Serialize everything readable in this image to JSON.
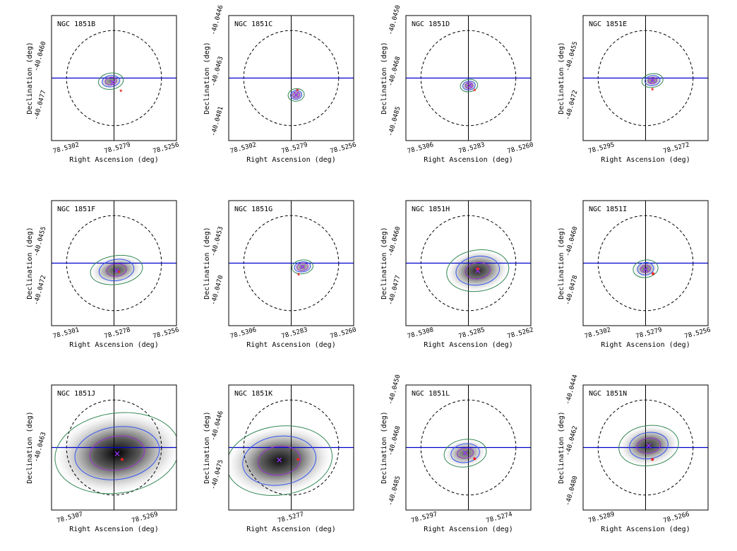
{
  "figure": {
    "xlabel": "Right Ascension (deg)",
    "ylabel": "Declination (deg)"
  },
  "colors": {
    "dashed_circle": "#000000",
    "crosshair_vertical": "#000000",
    "crosshair_horizontal": "#0000cc",
    "contour_inner": "#9933cc",
    "contour_mid": "#3355ee",
    "contour_outer": "#338855",
    "peak_marker": "#9933ff",
    "offset_marker": "#ee2222"
  },
  "chart_data": [
    {
      "type": "scatter",
      "title": "NGC 1851B",
      "xticks": [
        "78.5302",
        "78.5279",
        "78.5256"
      ],
      "yticks": [
        "-40.0460",
        "-40.0477"
      ],
      "core": [
        -0.05,
        0.05
      ],
      "radii": [
        [
          0.09,
          0.06
        ],
        [
          0.14,
          0.09
        ],
        [
          0.2,
          0.13
        ]
      ],
      "intensity": 0.55,
      "peak": [
        -0.02,
        0.07
      ],
      "marker": [
        0.11,
        0.19
      ],
      "marker_shape": "star"
    },
    {
      "type": "scatter",
      "title": "NGC 1851C",
      "xticks": [
        "78.5302",
        "78.5279",
        "78.5256"
      ],
      "yticks": [
        "-40.0446",
        "-40.0463",
        "-40.0481"
      ],
      "core": [
        0.08,
        0.27
      ],
      "radii": [
        [
          0.06,
          0.05
        ],
        [
          0.09,
          0.07
        ],
        [
          0.13,
          0.1
        ]
      ],
      "intensity": 0.5,
      "peak": [
        0.08,
        0.27
      ],
      "marker": [
        0.1,
        0.18
      ],
      "marker_shape": "star"
    },
    {
      "type": "scatter",
      "title": "NGC 1851D",
      "xticks": [
        "78.5306",
        "78.5283",
        "78.5260"
      ],
      "yticks": [
        "-40.0450",
        "-40.0468",
        "-40.0485"
      ],
      "core": [
        0.01,
        0.12
      ],
      "radii": [
        [
          0.06,
          0.05
        ],
        [
          0.1,
          0.07
        ],
        [
          0.14,
          0.1
        ]
      ],
      "intensity": 0.55,
      "peak": [
        0.02,
        0.12
      ],
      "marker": [
        0.1,
        0.18
      ],
      "marker_shape": "star"
    },
    {
      "type": "scatter",
      "title": "NGC 1851E",
      "xticks": [
        "78.5295",
        "78.5272"
      ],
      "yticks": [
        "-40.0455",
        "-40.0472"
      ],
      "core": [
        0.11,
        0.04
      ],
      "radii": [
        [
          0.07,
          0.05
        ],
        [
          0.12,
          0.08
        ],
        [
          0.17,
          0.11
        ]
      ],
      "intensity": 0.55,
      "peak": [
        0.11,
        0.04
      ],
      "marker": [
        0.11,
        0.17
      ],
      "marker_shape": "star"
    },
    {
      "type": "scatter",
      "title": "NGC 1851F",
      "xticks": [
        "78.5301",
        "78.5278",
        "78.5256"
      ],
      "yticks": [
        "-40.0455",
        "-40.0472"
      ],
      "core": [
        0.04,
        0.11
      ],
      "radii": [
        [
          0.16,
          0.1
        ],
        [
          0.28,
          0.17
        ],
        [
          0.42,
          0.23
        ]
      ],
      "intensity": 0.7,
      "peak": [
        0.04,
        0.12
      ],
      "marker": [
        0.08,
        0.13
      ],
      "marker_shape": "star"
    },
    {
      "type": "scatter",
      "title": "NGC 1851G",
      "xticks": [
        "78.5306",
        "78.5283",
        "78.5260"
      ],
      "yticks": [
        "-40.0453",
        "-40.0470"
      ],
      "core": [
        0.18,
        0.06
      ],
      "radii": [
        [
          0.09,
          0.06
        ],
        [
          0.13,
          0.08
        ],
        [
          0.17,
          0.11
        ]
      ],
      "intensity": 0.55,
      "peak": [
        0.18,
        0.06
      ],
      "marker": [
        0.12,
        0.17
      ],
      "marker_shape": "star"
    },
    {
      "type": "scatter",
      "title": "NGC 1851H",
      "xticks": [
        "78.5308",
        "78.5285",
        "78.5262"
      ],
      "yticks": [
        "-40.0460",
        "-40.0477"
      ],
      "core": [
        0.15,
        0.12
      ],
      "radii": [
        [
          0.2,
          0.13
        ],
        [
          0.35,
          0.23
        ],
        [
          0.5,
          0.33
        ]
      ],
      "intensity": 0.85,
      "peak": [
        0.15,
        0.12
      ],
      "marker": [
        0.15,
        0.09
      ],
      "marker_shape": "dot"
    },
    {
      "type": "scatter",
      "title": "NGC 1851I",
      "xticks": [
        "78.5302",
        "78.5279",
        "78.5256"
      ],
      "yticks": [
        "-40.0460",
        "-40.0478"
      ],
      "core": [
        0.0,
        0.09
      ],
      "radii": [
        [
          0.08,
          0.06
        ],
        [
          0.13,
          0.1
        ],
        [
          0.2,
          0.14
        ]
      ],
      "intensity": 0.6,
      "peak": [
        0.0,
        0.1
      ],
      "marker": [
        0.12,
        0.17
      ],
      "marker_shape": "dot"
    },
    {
      "type": "scatter",
      "title": "NGC 1851J",
      "xticks": [
        "78.5307",
        "78.5269"
      ],
      "yticks": [
        "-40.0463"
      ],
      "core": [
        0.05,
        0.09
      ],
      "radii": [
        [
          0.44,
          0.27
        ],
        [
          0.68,
          0.42
        ],
        [
          1.0,
          0.64
        ]
      ],
      "intensity": 1.0,
      "peak": [
        0.05,
        0.1
      ],
      "marker": [
        0.13,
        0.19
      ],
      "marker_shape": "dot"
    },
    {
      "type": "scatter",
      "title": "NGC 1851K",
      "xticks": [
        "78.5277"
      ],
      "yticks": [
        "-40.0446",
        "-40.0475"
      ],
      "core": [
        -0.19,
        0.21
      ],
      "radii": [
        [
          0.34,
          0.23
        ],
        [
          0.59,
          0.39
        ],
        [
          0.85,
          0.55
        ]
      ],
      "intensity": 0.95,
      "peak": [
        -0.19,
        0.2
      ],
      "marker": [
        0.11,
        0.19
      ],
      "marker_shape": "dot"
    },
    {
      "type": "scatter",
      "title": "NGC 1851L",
      "xticks": [
        "78.5297",
        "78.5274"
      ],
      "yticks": [
        "-40.0450",
        "-40.0468",
        "-40.0485"
      ],
      "core": [
        -0.05,
        0.09
      ],
      "radii": [
        [
          0.13,
          0.08
        ],
        [
          0.23,
          0.15
        ],
        [
          0.34,
          0.22
        ]
      ],
      "intensity": 0.6,
      "peak": [
        -0.05,
        0.09
      ],
      "marker": [
        0.1,
        0.18
      ],
      "marker_shape": "dot"
    },
    {
      "type": "scatter",
      "title": "NGC 1851N",
      "xticks": [
        "78.5289",
        "78.5266"
      ],
      "yticks": [
        "-40.0444",
        "-40.0462",
        "-40.0480"
      ],
      "core": [
        0.05,
        -0.03
      ],
      "radii": [
        [
          0.19,
          0.12
        ],
        [
          0.31,
          0.21
        ],
        [
          0.48,
          0.32
        ]
      ],
      "intensity": 0.8,
      "peak": [
        0.05,
        -0.03
      ],
      "marker": [
        0.11,
        0.19
      ],
      "marker_shape": "dot"
    }
  ]
}
